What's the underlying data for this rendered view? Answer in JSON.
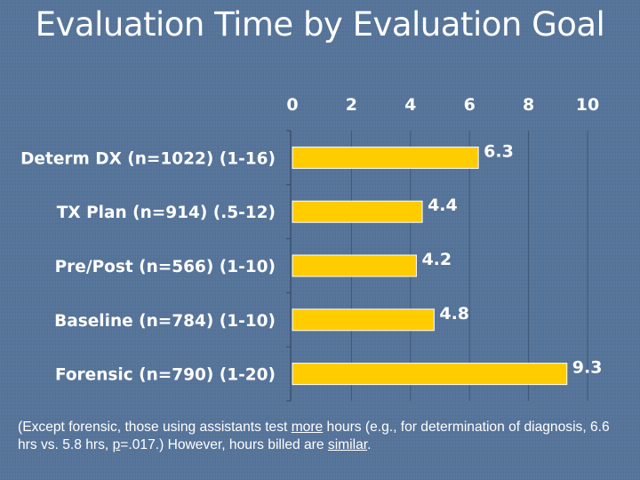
{
  "slide": {
    "title": "Evaluation Time by Evaluation Goal"
  },
  "chart_data": {
    "type": "bar",
    "orientation": "horizontal",
    "title": "Evaluation Time by Evaluation Goal",
    "categories": [
      "Determ DX (n=1022) (1-16)",
      "TX Plan (n=914) (.5-12)",
      "Pre/Post (n=566) (1-10)",
      "Baseline (n=784) (1-10)",
      "Forensic (n=790) (1-20)"
    ],
    "values": [
      6.3,
      4.4,
      4.2,
      4.8,
      9.3
    ],
    "data_labels": [
      "6.3",
      "4.4",
      "4.2",
      "4.8",
      "9.3"
    ],
    "xlim": [
      0,
      10
    ],
    "x_ticks": [
      0,
      2,
      4,
      6,
      8,
      10
    ],
    "x_tick_labels": [
      "0",
      "2",
      "4",
      "6",
      "8",
      "10"
    ],
    "x_axis_position": "top",
    "grid": true,
    "bar_color": "#ffcc00",
    "label_color": "#ffffff"
  },
  "footnote": {
    "part1": "(Except forensic, those using assistants test ",
    "more": "more",
    "part2": " hours (e.g., for determination of diagnosis, 6.6 hrs vs. 5.8 hrs, ",
    "p": "p",
    "part3": "=.017.)  However, hours billed are ",
    "similar": "similar",
    "part4": "."
  }
}
